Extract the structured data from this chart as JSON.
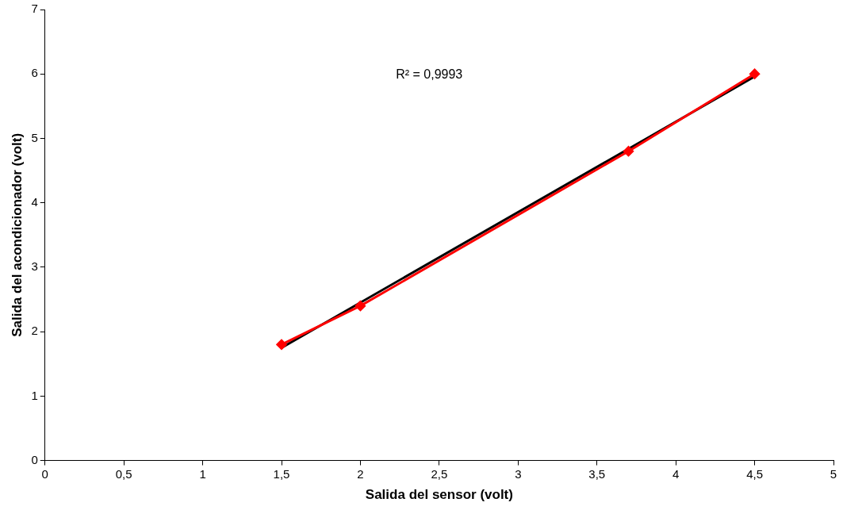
{
  "chart_data": {
    "type": "line",
    "xlabel": "Salida del sensor (volt)",
    "ylabel": "Salida del acondicionador (volt)",
    "annotations": [
      "R² = 0,9993"
    ],
    "series": [
      {
        "type": "line",
        "color": "#ff0000",
        "x": [
          1.5,
          2,
          3.7,
          4.5
        ],
        "values": [
          1.8,
          2.4,
          4.8,
          6
        ],
        "marker": "diamond"
      },
      {
        "type": "line",
        "color": "#000000",
        "x": [
          1.5,
          4.5
        ],
        "values": [
          1.75,
          5.96
        ],
        "marker": "none"
      }
    ],
    "xlim": [
      0,
      5
    ],
    "xticks": [
      0,
      {
        "value": 0.5,
        "label": "0,5"
      },
      1,
      {
        "value": 1.5,
        "label": "1,5"
      },
      2,
      {
        "value": 2.5,
        "label": "2,5"
      },
      3,
      {
        "value": 3.5,
        "label": "3,5"
      },
      4,
      {
        "value": 4.5,
        "label": "4,5"
      },
      5
    ],
    "ylim": [
      0,
      7
    ],
    "yticks": [
      0,
      1,
      2,
      3,
      4,
      5,
      6,
      7
    ],
    "grid": false,
    "legend": false,
    "line_style": "solid"
  }
}
